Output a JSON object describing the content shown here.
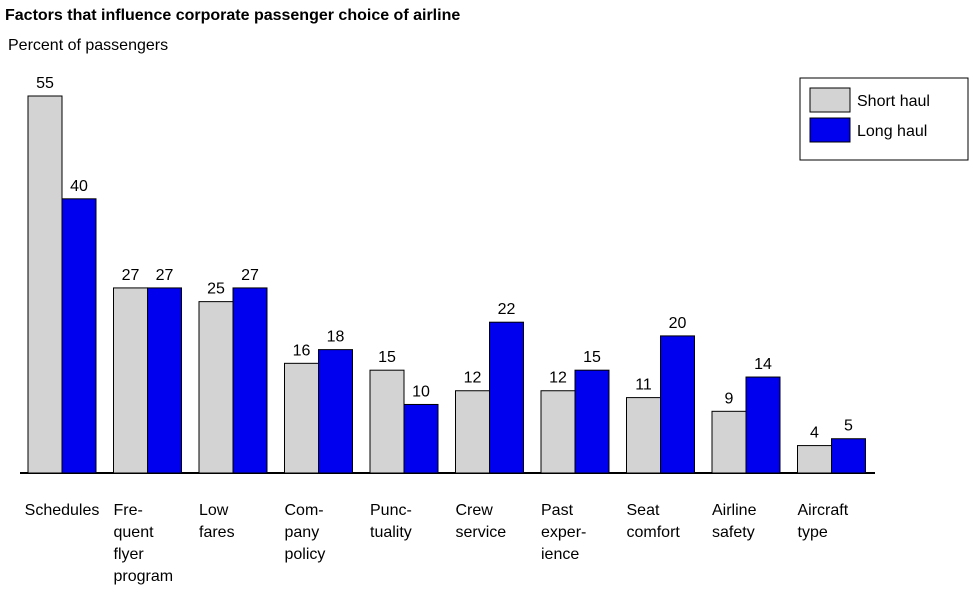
{
  "chart_data": {
    "type": "bar",
    "title": "Factors that influence corporate passenger choice of airline",
    "subtitle": "Percent of passengers",
    "categories": [
      [
        "Schedules"
      ],
      [
        "Fre-",
        "quent",
        "flyer",
        "program"
      ],
      [
        "Low",
        "fares"
      ],
      [
        "Com-",
        "pany",
        "policy"
      ],
      [
        "Punc-",
        "tuality"
      ],
      [
        "Crew",
        "service"
      ],
      [
        "Past",
        "exper-",
        "ience"
      ],
      [
        "Seat",
        "comfort"
      ],
      [
        "Airline",
        "safety"
      ],
      [
        "Aircraft",
        "type"
      ]
    ],
    "series": [
      {
        "name": "Short haul",
        "color": "#d3d3d3",
        "values": [
          55,
          27,
          25,
          16,
          15,
          12,
          12,
          11,
          9,
          4
        ]
      },
      {
        "name": "Long haul",
        "color": "#0000ee",
        "values": [
          40,
          27,
          27,
          18,
          10,
          22,
          15,
          20,
          14,
          5
        ]
      }
    ],
    "legend": "upper right"
  }
}
